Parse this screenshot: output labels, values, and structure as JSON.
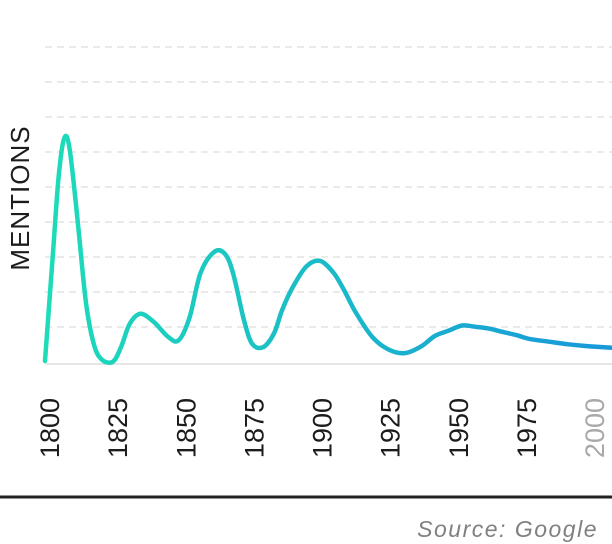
{
  "chart_data": {
    "type": "line",
    "ylabel": "MENTIONS",
    "x_ticks": [
      "1800",
      "1825",
      "1850",
      "1875",
      "1900",
      "1925",
      "1950",
      "1975",
      "2000"
    ],
    "muted_tick": "2000",
    "xlim": [
      1800,
      2008
    ],
    "ylim": [
      0,
      100
    ],
    "grid": true,
    "series": [
      {
        "x": [
          1800,
          1803,
          1805,
          1807,
          1809,
          1812,
          1815,
          1818,
          1821,
          1825,
          1828,
          1831,
          1835,
          1840,
          1845,
          1849,
          1853,
          1857,
          1862,
          1866,
          1869,
          1873,
          1876,
          1880,
          1884,
          1887,
          1891,
          1896,
          1901,
          1906,
          1910,
          1914,
          1920,
          1926,
          1932,
          1938,
          1943,
          1948,
          1953,
          1958,
          1963,
          1968,
          1973,
          1978,
          1985,
          1992,
          2000,
          2008
        ],
        "y": [
          0.4,
          43,
          71,
          85.8,
          82,
          54,
          23,
          6.5,
          0.8,
          0.2,
          6,
          14.5,
          18.5,
          15.3,
          9.8,
          8.3,
          17,
          34,
          42.2,
          41.5,
          34,
          16,
          7,
          5.7,
          11,
          20,
          29,
          36.8,
          38.8,
          34,
          27,
          19,
          9.7,
          4.8,
          3.4,
          6,
          10,
          12,
          14,
          13.5,
          12.8,
          11.5,
          10.3,
          8.8,
          7.8,
          6.8,
          6,
          5.5
        ]
      }
    ]
  },
  "gradient": {
    "start": "#1ddcb8",
    "end": "#1898da"
  },
  "colors": {
    "grid": "#e3e3e3",
    "baseline": "#dedede",
    "frame": "#222222"
  },
  "source_text": "Source: Google"
}
